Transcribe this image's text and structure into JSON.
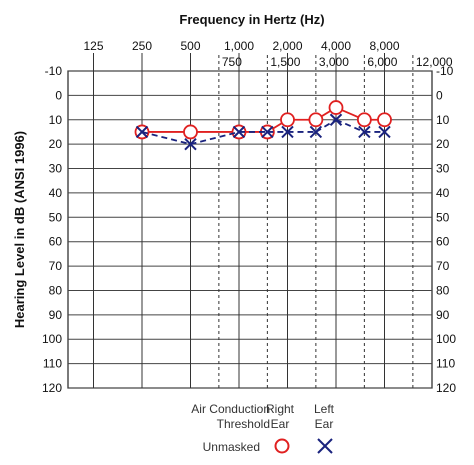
{
  "chart_data": {
    "type": "line",
    "title": "Frequency in Hertz (Hz)",
    "ylabel": "Hearing Level in dB (ANSI 1996)",
    "x_ticks_main": [
      "125",
      "250",
      "500",
      "1,000",
      "2,000",
      "4,000",
      "8,000"
    ],
    "x_ticks_inter": [
      "750",
      "1,500",
      "3,000",
      "6,000",
      "12,000"
    ],
    "y_ticks": [
      "-10",
      "0",
      "10",
      "20",
      "30",
      "40",
      "50",
      "60",
      "70",
      "80",
      "90",
      "100",
      "110",
      "120"
    ],
    "ylim": [
      -10,
      120
    ],
    "y_inverted": true,
    "x_scale": "log",
    "series": [
      {
        "name": "Right Ear",
        "marker": "circle",
        "color": "#e02020",
        "line_style": "solid",
        "x": [
          250,
          500,
          1000,
          1500,
          2000,
          3000,
          4000,
          6000,
          8000
        ],
        "y": [
          15,
          15,
          15,
          15,
          10,
          10,
          5,
          10,
          10
        ]
      },
      {
        "name": "Left Ear",
        "marker": "x",
        "color": "#1a237e",
        "line_style": "dashed",
        "x": [
          250,
          500,
          1000,
          1500,
          2000,
          3000,
          4000,
          6000,
          8000
        ],
        "y": [
          15,
          20,
          15,
          15,
          15,
          15,
          10,
          15,
          15
        ]
      }
    ]
  },
  "legend": {
    "row_label": "Air Conduction\nThreshold",
    "unmasked": "Unmasked",
    "right_header": "Right\nEar",
    "left_header": "Left\nEar"
  }
}
